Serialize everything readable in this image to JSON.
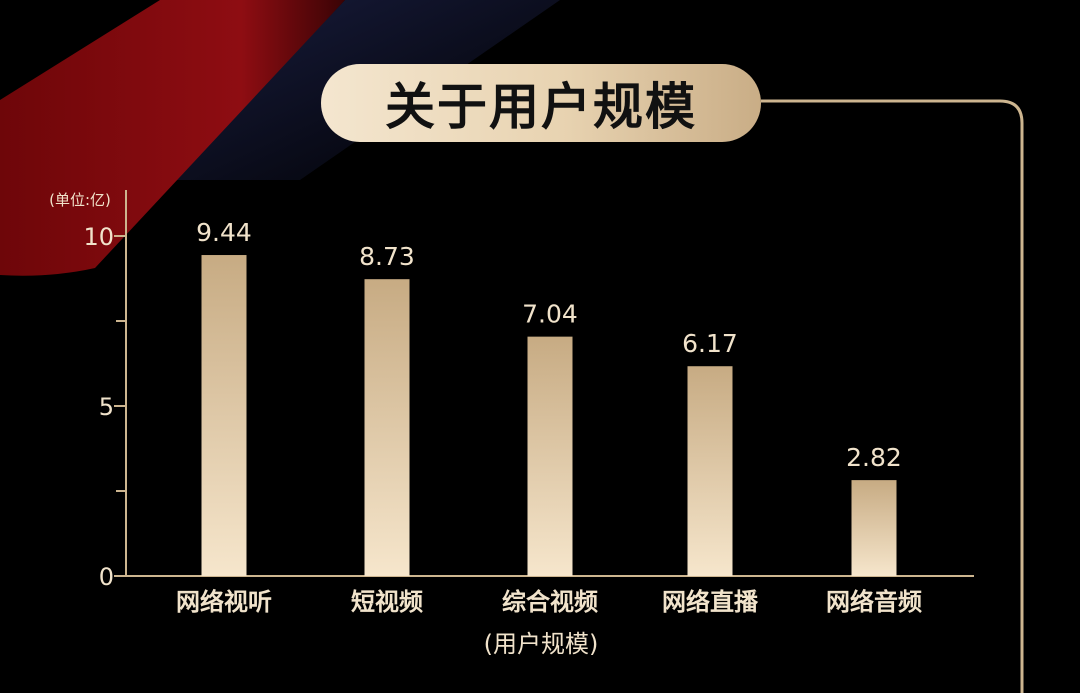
{
  "title": "关于用户规模",
  "colors": {
    "background": "#000000",
    "gold_light": "#f4e6cf",
    "gold_dark": "#c9ad86",
    "bar_top": "#c7ab83",
    "bar_bottom": "#f6e6cc",
    "axis": "#cdb58f",
    "text_light": "#f1e3cb",
    "red_accent": "#7a0a0e",
    "navy_accent": "#141a3c"
  },
  "chart_data": {
    "type": "bar",
    "unit_label": "(单位:亿)",
    "categories": [
      "网络视听",
      "短视频",
      "综合视频",
      "网络直播",
      "网络音频"
    ],
    "values": [
      9.44,
      8.73,
      7.04,
      6.17,
      2.82
    ],
    "value_labels": [
      "9.44",
      "8.73",
      "7.04",
      "6.17",
      "2.82"
    ],
    "xlabel": "(用户规模)",
    "ylim": [
      0,
      10
    ],
    "yticks": [
      0,
      5,
      10
    ],
    "minor_yticks": [
      2.5,
      7.5
    ],
    "grid": false,
    "legend": "none"
  }
}
